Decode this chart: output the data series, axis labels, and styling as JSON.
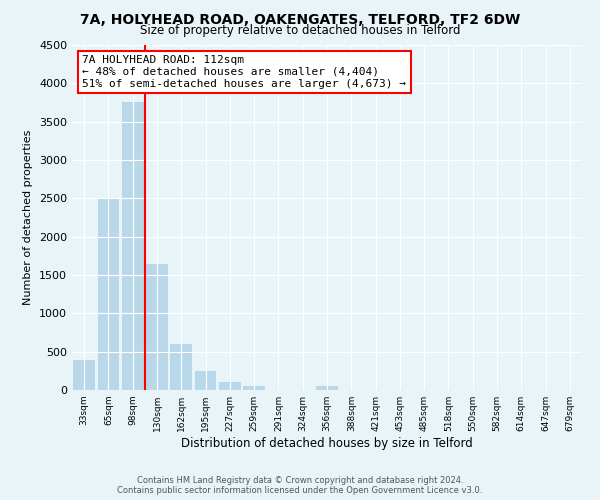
{
  "title": "7A, HOLYHEAD ROAD, OAKENGATES, TELFORD, TF2 6DW",
  "subtitle": "Size of property relative to detached houses in Telford",
  "xlabel": "Distribution of detached houses by size in Telford",
  "ylabel": "Number of detached properties",
  "bar_color": "#b8d8ea",
  "annotation_box_title": "7A HOLYHEAD ROAD: 112sqm",
  "annotation_line1": "← 48% of detached houses are smaller (4,404)",
  "annotation_line2": "51% of semi-detached houses are larger (4,673) →",
  "property_line_color": "red",
  "categories": [
    "33sqm",
    "65sqm",
    "98sqm",
    "130sqm",
    "162sqm",
    "195sqm",
    "227sqm",
    "259sqm",
    "291sqm",
    "324sqm",
    "356sqm",
    "388sqm",
    "421sqm",
    "453sqm",
    "485sqm",
    "518sqm",
    "550sqm",
    "582sqm",
    "614sqm",
    "647sqm",
    "679sqm"
  ],
  "values": [
    390,
    2500,
    3750,
    1640,
    600,
    245,
    100,
    55,
    0,
    0,
    50,
    0,
    0,
    0,
    0,
    0,
    0,
    0,
    0,
    0,
    0
  ],
  "ylim": [
    0,
    4500
  ],
  "yticks": [
    0,
    500,
    1000,
    1500,
    2000,
    2500,
    3000,
    3500,
    4000,
    4500
  ],
  "footer_line1": "Contains HM Land Registry data © Crown copyright and database right 2024.",
  "footer_line2": "Contains public sector information licensed under the Open Government Licence v3.0.",
  "background_color": "#e8f4f8",
  "grid_color": "#ffffff"
}
